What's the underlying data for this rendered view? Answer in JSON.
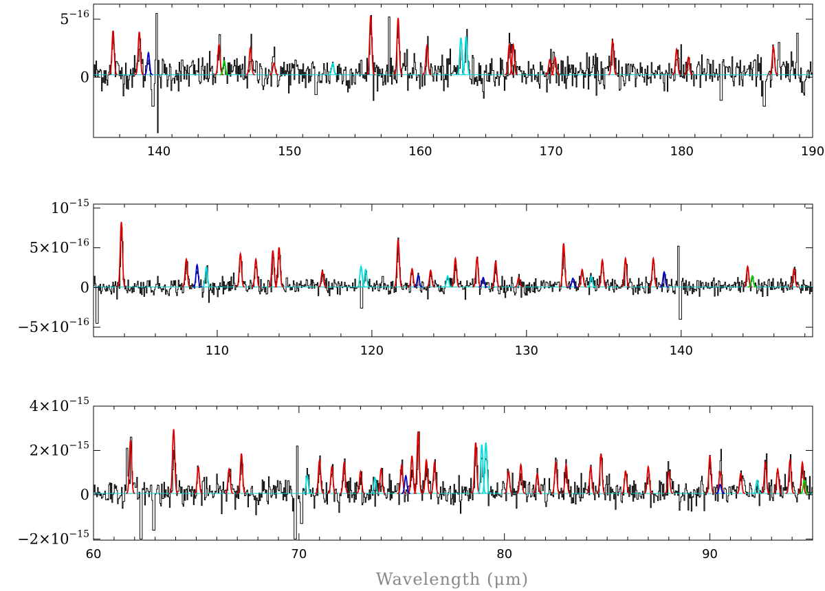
{
  "chart_data": [
    {
      "type": "line",
      "title": "",
      "xlabel": "",
      "xlim": [
        135,
        190
      ],
      "ylim": [
        -5.2e-16,
        6.3e-16
      ],
      "xticks": [
        140,
        150,
        160,
        170,
        180,
        190
      ],
      "xtick_labels": [
        "140",
        "150",
        "160",
        "170",
        "180",
        "190"
      ],
      "yticks": [
        5e-16,
        0
      ],
      "ytick_labels": [
        {
          "mant": "5",
          "exp": "−16"
        },
        {
          "mant": "0",
          "exp": ""
        }
      ],
      "lines": [
        {
          "color": "#dd0000",
          "x": [
            136.5,
            138.5,
            144.6,
            147.0,
            148.8,
            156.2,
            158.3,
            160.5,
            166.8,
            167.1,
            169.9,
            170.3,
            174.7,
            179.6,
            180.5,
            187.0
          ],
          "y": [
            3.8e-16,
            3.7e-16,
            2.6e-16,
            2.3e-16,
            1e-16,
            5.1e-16,
            4.9e-16,
            2.5e-16,
            2.6e-16,
            2.6e-16,
            1.3e-16,
            1.5e-16,
            2.9e-16,
            2.2e-16,
            1.5e-16,
            2.4e-16
          ]
        },
        {
          "color": "#0000cc",
          "x": [
            139.2
          ],
          "y": [
            1.9e-16
          ]
        },
        {
          "color": "#00cc00",
          "x": [
            145.0
          ],
          "y": [
            1.2e-16
          ]
        },
        {
          "color": "#00dddd",
          "x": [
            153.3,
            163.1,
            163.5
          ],
          "y": [
            1e-16,
            3.2e-16,
            3.3e-16
          ]
        }
      ]
    },
    {
      "type": "line",
      "title": "",
      "xlabel": "",
      "xlim": [
        102,
        148.5
      ],
      "ylim": [
        -6.2e-16,
        1.05e-15
      ],
      "xticks": [
        110,
        120,
        130,
        140
      ],
      "xtick_labels": [
        "110",
        "120",
        "130",
        "140"
      ],
      "yticks": [
        1e-15,
        5e-16,
        0,
        -5e-16
      ],
      "ytick_labels": [
        {
          "mant": "10",
          "exp": "−15"
        },
        {
          "mant": "5×10",
          "exp": "−16"
        },
        {
          "mant": "0",
          "exp": ""
        },
        {
          "mant": "−5×10",
          "exp": "−16"
        }
      ],
      "lines": [
        {
          "color": "#dd0000",
          "x": [
            103.8,
            108.0,
            111.5,
            112.5,
            113.6,
            114.0,
            116.8,
            121.7,
            122.6,
            123.8,
            125.4,
            126.8,
            128.0,
            129.5,
            132.4,
            133.6,
            134.9,
            136.4,
            138.2,
            144.3,
            147.3
          ],
          "y": [
            8.2e-16,
            3.5e-16,
            4.2e-16,
            3.5e-16,
            4.6e-16,
            5e-16,
            2e-16,
            6e-16,
            2.3e-16,
            2.1e-16,
            3.6e-16,
            3.7e-16,
            3.2e-16,
            1.2e-16,
            5.5e-16,
            2.2e-16,
            3.4e-16,
            3.6e-16,
            3.6e-16,
            2.6e-16,
            2.3e-16
          ]
        },
        {
          "color": "#0000cc",
          "x": [
            108.7,
            123.0,
            127.2,
            133.0,
            138.9
          ],
          "y": [
            2.8e-16,
            1.5e-16,
            1.2e-16,
            1.1e-16,
            1.9e-16
          ]
        },
        {
          "color": "#00cc00",
          "x": [
            144.6
          ],
          "y": [
            1.4e-16
          ]
        },
        {
          "color": "#00dddd",
          "x": [
            109.3,
            119.3,
            119.6,
            124.9,
            134.2
          ],
          "y": [
            2.5e-16,
            2.6e-16,
            2.2e-16,
            1.4e-16,
            1.3e-16
          ]
        }
      ]
    },
    {
      "type": "line",
      "title": "",
      "xlabel": "Wavelength (μm)",
      "xlim": [
        60,
        95
      ],
      "ylim": [
        -2.05e-15,
        4e-15
      ],
      "xticks": [
        60,
        70,
        80,
        90
      ],
      "xtick_labels": [
        "60",
        "70",
        "80",
        "90"
      ],
      "yticks": [
        4e-15,
        2e-15,
        0,
        -2e-15
      ],
      "ytick_labels": [
        {
          "mant": "4×10",
          "exp": "−15"
        },
        {
          "mant": "2×10",
          "exp": "−15"
        },
        {
          "mant": "0",
          "exp": ""
        },
        {
          "mant": "−2×10",
          "exp": "−15"
        }
      ],
      "lines": [
        {
          "color": "#dd0000",
          "x": [
            61.8,
            63.9,
            65.1,
            66.6,
            67.2,
            71.0,
            71.6,
            72.2,
            73.0,
            74.0,
            75.0,
            75.5,
            75.8,
            76.2,
            76.6,
            78.6,
            80.2,
            80.8,
            81.6,
            82.5,
            83.0,
            84.2,
            84.7,
            85.9,
            87.0,
            88.0,
            90.0,
            90.5,
            91.5,
            92.7,
            93.3,
            93.9,
            94.5
          ],
          "y": [
            2.4e-15,
            2.9e-15,
            1.2e-15,
            1.1e-15,
            1.8e-15,
            1.5e-15,
            1.2e-15,
            1.4e-15,
            1e-15,
            1.1e-15,
            1.3e-15,
            1.7e-15,
            2.8e-15,
            1.5e-15,
            1.4e-15,
            2.3e-15,
            1e-15,
            1.3e-15,
            9e-16,
            1.4e-15,
            1.3e-15,
            1.2e-15,
            1.8e-15,
            1e-15,
            1.2e-15,
            1e-15,
            1.7e-15,
            1e-15,
            9e-16,
            1.4e-15,
            1.1e-15,
            1.5e-15,
            1.4e-15
          ]
        },
        {
          "color": "#0000cc",
          "x": [
            75.2,
            90.5
          ],
          "y": [
            8e-16,
            4e-16
          ]
        },
        {
          "color": "#00cc00",
          "x": [
            94.6
          ],
          "y": [
            6e-16
          ]
        },
        {
          "color": "#00dddd",
          "x": [
            70.4,
            73.7,
            78.9,
            79.1,
            92.3
          ],
          "y": [
            8e-16,
            7e-16,
            2.2e-15,
            2.3e-15,
            6e-16
          ]
        }
      ]
    }
  ],
  "legend_colors": {
    "observed": "#000000",
    "model_a": "#dd0000",
    "model_b": "#0000cc",
    "model_c": "#00cc00",
    "model_d": "#00dddd"
  }
}
